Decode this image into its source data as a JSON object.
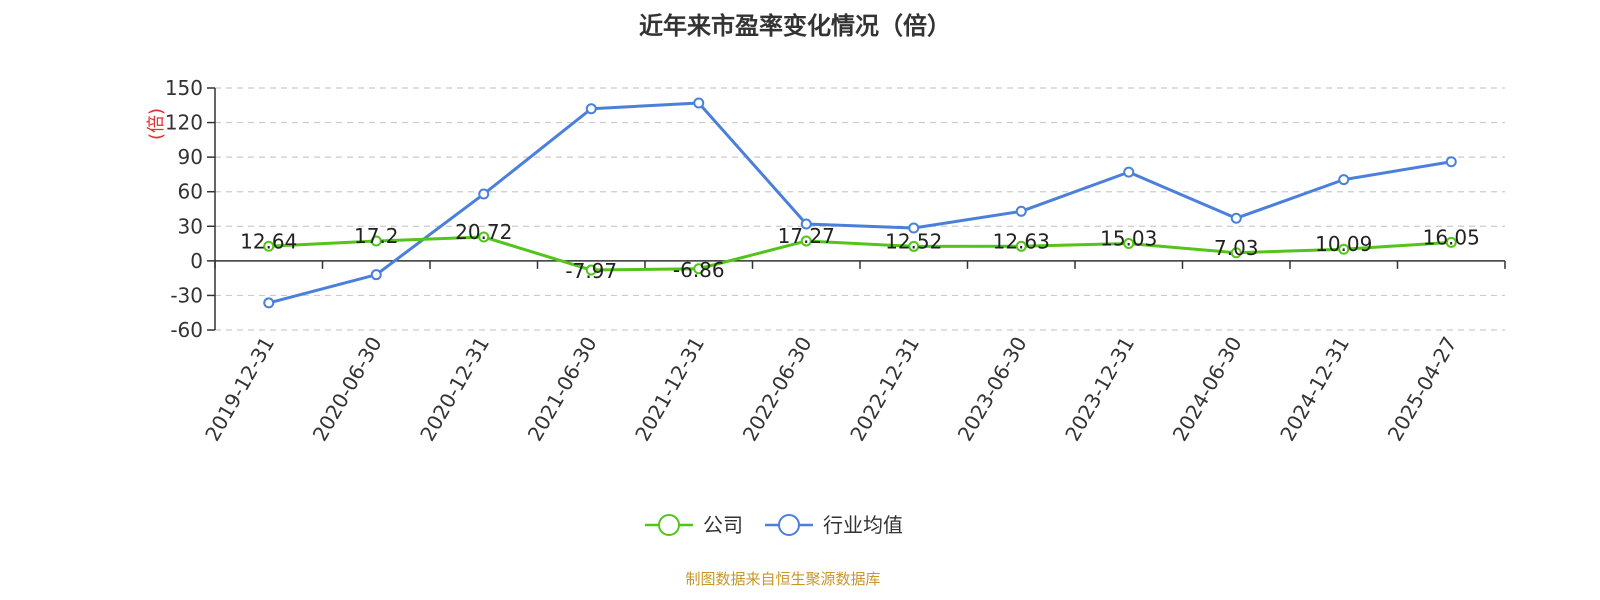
{
  "chart_data": {
    "type": "line",
    "title": "近年来市盈率变化情况（倍）",
    "ylabel": "(倍)",
    "xlabel": "",
    "categories": [
      "2019-12-31",
      "2020-06-30",
      "2020-12-31",
      "2021-06-30",
      "2021-12-31",
      "2022-06-30",
      "2022-12-31",
      "2023-06-30",
      "2023-12-31",
      "2024-06-30",
      "2024-12-31",
      "2025-04-27"
    ],
    "ylim": [
      -60,
      150
    ],
    "yticks": [
      -60,
      -30,
      0,
      30,
      60,
      90,
      120,
      150
    ],
    "grid": true,
    "legend_position": "bottom-center",
    "series": [
      {
        "name": "公司",
        "color": "#52c41a",
        "values": [
          12.64,
          17.2,
          20.72,
          -7.97,
          -6.86,
          17.27,
          12.52,
          12.63,
          15.03,
          7.03,
          10.09,
          16.05
        ],
        "labels": [
          "12.64",
          "17.2",
          "20.72",
          "-7.97",
          "-6.86",
          "17.27",
          "12.52",
          "12.63",
          "15.03",
          "7.03",
          "10.09",
          "16.05"
        ]
      },
      {
        "name": "行业均值",
        "color": "#4a7fdc",
        "values": [
          -36.5,
          -12,
          58,
          132,
          137,
          32,
          28.5,
          43,
          77,
          37,
          70.5,
          86
        ]
      }
    ],
    "source": "制图数据来自恒生聚源数据库"
  }
}
